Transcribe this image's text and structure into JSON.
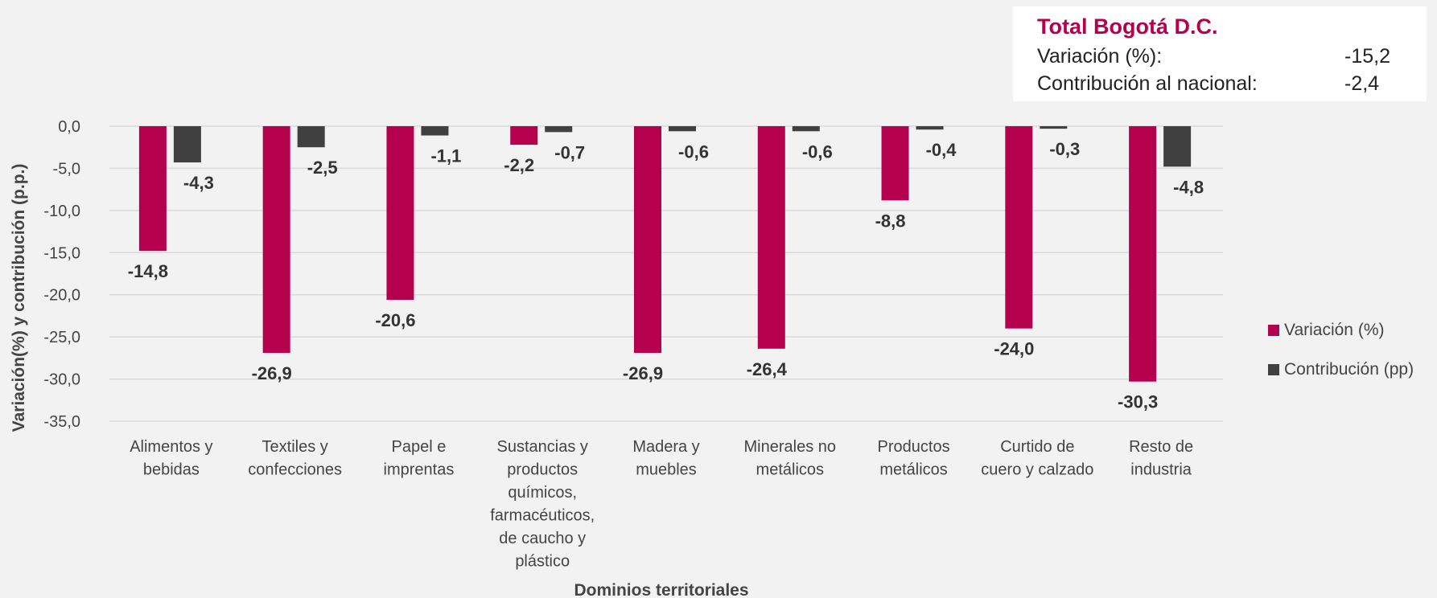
{
  "summary": {
    "title": "Total Bogotá D.C.",
    "rows": [
      {
        "label": "Variación (%):",
        "value": "-15,2"
      },
      {
        "label": "Contribución al nacional:",
        "value": "-2,4"
      }
    ]
  },
  "colors": {
    "variation": "#b5004e",
    "contribution": "#404040",
    "grid": "#d9d9d9",
    "background": "#f2f2f2"
  },
  "chart_data": {
    "type": "bar",
    "xlabel": "Dominios territoriales",
    "ylabel": "Variación(%) y contribución (p.p.)",
    "ylim": [
      -35,
      0
    ],
    "yticks": [
      "0,0",
      "-5,0",
      "-10,0",
      "-15,0",
      "-20,0",
      "-25,0",
      "-30,0",
      "-35,0"
    ],
    "grid": true,
    "legend_position": "right",
    "categories": [
      [
        "Alimentos y",
        "bebidas"
      ],
      [
        "Textiles y",
        "confecciones"
      ],
      [
        "Papel e",
        "imprentas"
      ],
      [
        "Sustancias y",
        "productos",
        "químicos,",
        "farmacéuticos,",
        "de caucho y",
        "plástico"
      ],
      [
        "Madera y",
        "muebles"
      ],
      [
        "Minerales no",
        "metálicos"
      ],
      [
        "Productos",
        "metálicos"
      ],
      [
        "Curtido de",
        "cuero y calzado"
      ],
      [
        "Resto de",
        "industria"
      ]
    ],
    "series": [
      {
        "name": "Variación (%)",
        "values": [
          -14.8,
          -26.9,
          -20.6,
          -2.2,
          -26.9,
          -26.4,
          -8.8,
          -24.0,
          -30.3
        ],
        "labels": [
          "-14,8",
          "-26,9",
          "-20,6",
          "-2,2",
          "-26,9",
          "-26,4",
          "-8,8",
          "-24,0",
          "-30,3"
        ]
      },
      {
        "name": "Contribución (pp)",
        "values": [
          -4.3,
          -2.5,
          -1.1,
          -0.7,
          -0.6,
          -0.6,
          -0.4,
          -0.3,
          -4.8
        ],
        "labels": [
          "-4,3",
          "-2,5",
          "-1,1",
          "-0,7",
          "-0,6",
          "-0,6",
          "-0,4",
          "-0,3",
          "-4,8"
        ]
      }
    ]
  }
}
